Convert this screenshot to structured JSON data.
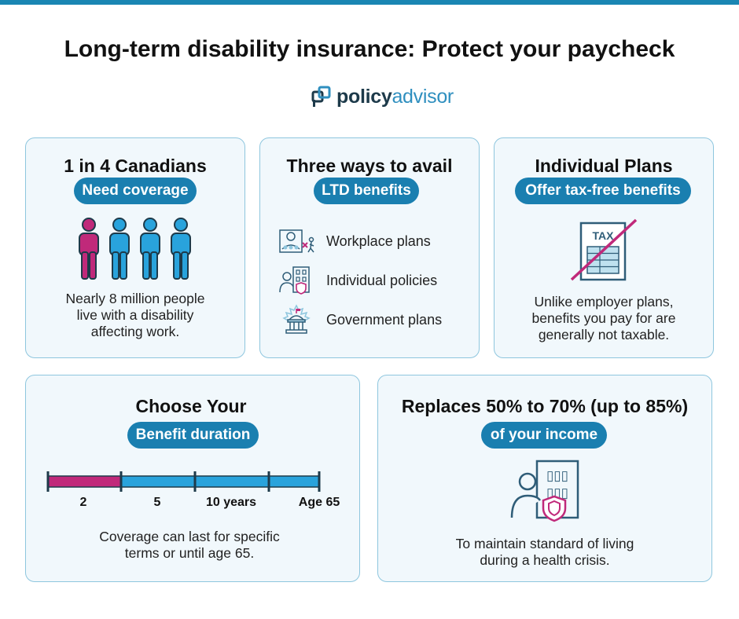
{
  "header": {
    "title": "Long-term disability insurance: Protect your paycheck",
    "logo": {
      "part1": "policy",
      "part2": "advisor"
    }
  },
  "colors": {
    "accent": "#1a7fb0",
    "highlight": "#c0297a",
    "card_bg": "#f1f8fc",
    "card_border": "#8ec6de"
  },
  "cards": {
    "coverage": {
      "title": "1 in 4 Canadians",
      "pill": "Need coverage",
      "text_lines": [
        "Nearly 8 million people",
        "live with a disability",
        "affecting work."
      ],
      "people_icon": "person-icon",
      "people_total": 4,
      "people_highlighted": 1
    },
    "ways": {
      "title": "Three ways to avail",
      "pill": "LTD benefits",
      "items": [
        {
          "icon": "workplace-icon",
          "label": "Workplace plans"
        },
        {
          "icon": "individual-policy-icon",
          "label": "Individual policies"
        },
        {
          "icon": "government-icon",
          "label": "Government plans"
        }
      ]
    },
    "individual": {
      "title": "Individual Plans",
      "pill": "Offer tax-free benefits",
      "icon_label": "TAX",
      "text_lines": [
        "Unlike employer plans,",
        "benefits you pay for are",
        "generally not taxable."
      ]
    },
    "duration": {
      "title": "Choose Your",
      "pill": "Benefit duration",
      "ticks": [
        "2",
        "5",
        "10 years",
        "Age 65"
      ],
      "highlighted_segments": 1,
      "text_lines": [
        "Coverage can last for specific",
        "terms or until age 65."
      ]
    },
    "income": {
      "title": "Replaces 50% to 70% (up to 85%)",
      "pill": "of your income",
      "text_lines": [
        "To maintain standard of living",
        "during a health crisis."
      ]
    }
  }
}
